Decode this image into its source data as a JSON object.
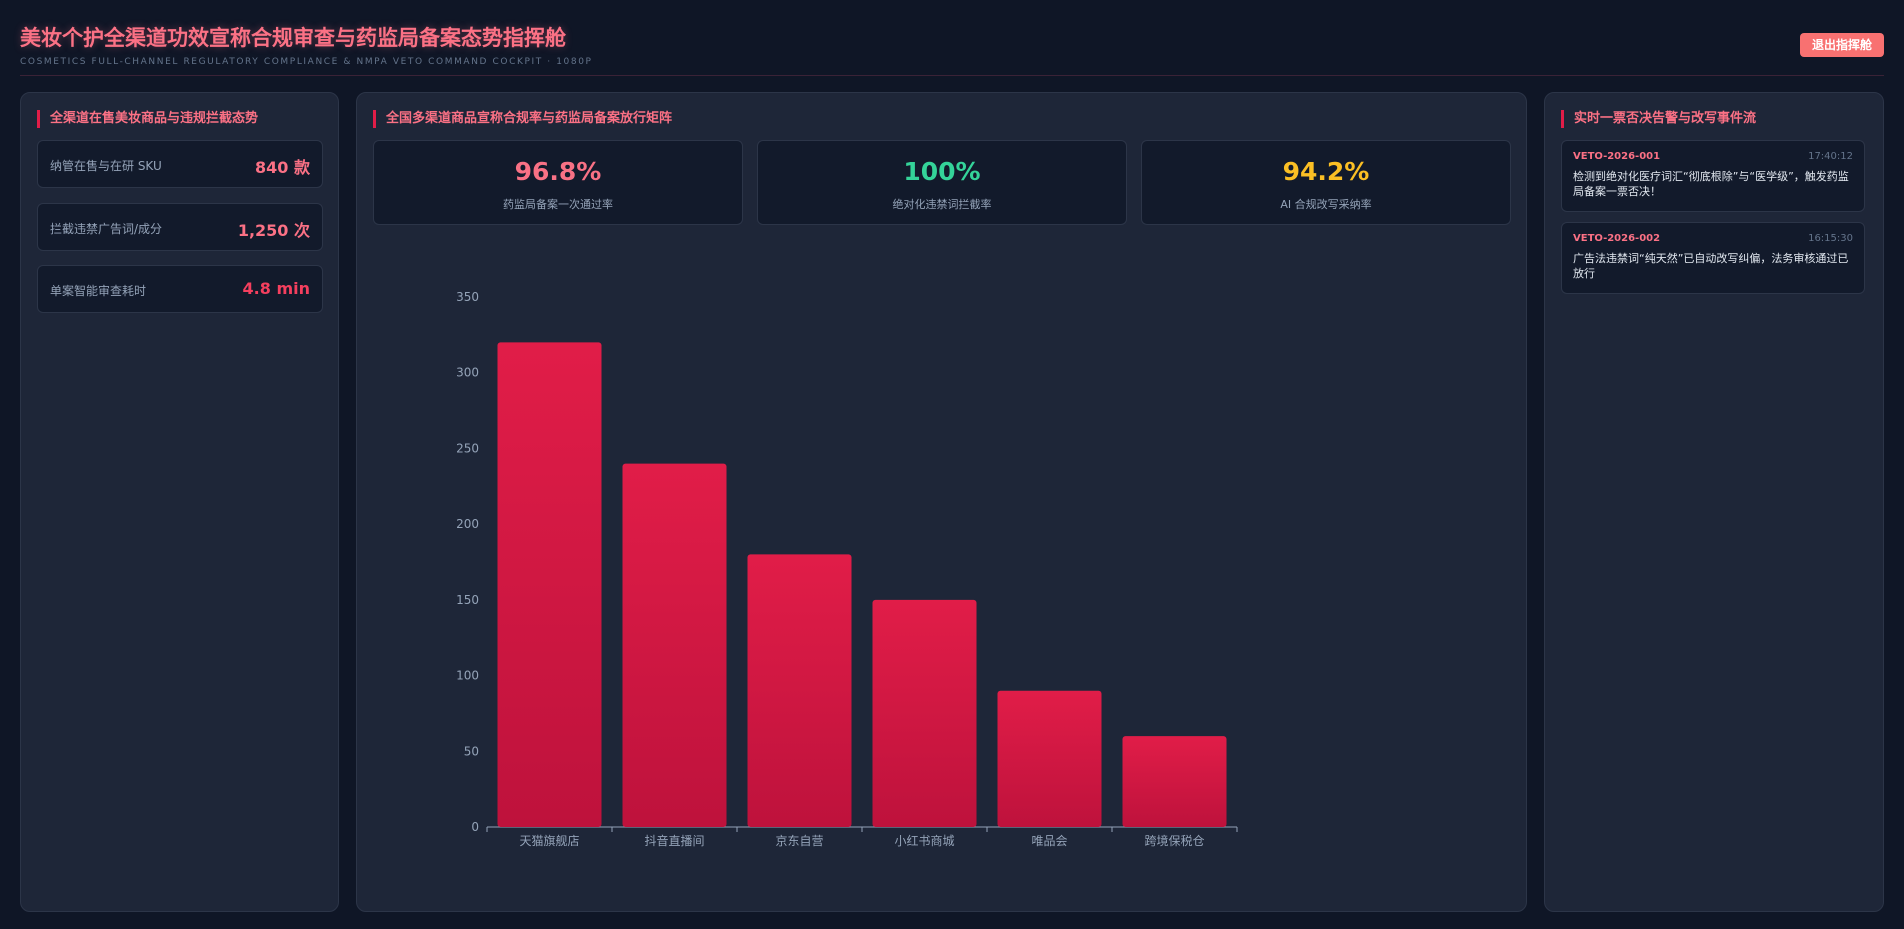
{
  "header": {
    "title": "美妆个护全渠道功效宣称合规审查与药监局备案态势指挥舱",
    "subtitle": "COSMETICS FULL-CHANNEL REGULATORY COMPLIANCE & NMPA VETO COMMAND COCKPIT · 1080P",
    "exit_label": "退出指挥舱"
  },
  "left_panel": {
    "title": "全渠道在售美妆商品与违规拦截态势",
    "stats": [
      {
        "label": "纳管在售与在研 SKU",
        "value": "840 款"
      },
      {
        "label": "拦截违禁广告词/成分",
        "value": "1,250 次"
      },
      {
        "label": "单案智能审查耗时",
        "value": "4.8 min"
      }
    ]
  },
  "center_panel": {
    "title": "全国多渠道商品宣称合规率与药监局备案放行矩阵",
    "kpis": [
      {
        "value": "96.8%",
        "label": "药监局备案一次通过率",
        "color": "#f87185"
      },
      {
        "value": "100%",
        "label": "绝对化违禁词拦截率",
        "color": "#34d399"
      },
      {
        "value": "94.2%",
        "label": "AI 合规改写采纳率",
        "color": "#fbbf24"
      }
    ]
  },
  "right_panel": {
    "title": "实时一票否决告警与改写事件流",
    "events": [
      {
        "id": "VETO-2026-001",
        "time": "17:40:12",
        "text": "检测到绝对化医疗词汇“彻底根除”与“医学级”，触发药监局备案一票否决！"
      },
      {
        "id": "VETO-2026-002",
        "time": "16:15:30",
        "text": "广告法违禁词“纯天然”已自动改写纠偏，法务审核通过已放行"
      }
    ]
  },
  "chart_data": {
    "type": "bar",
    "categories": [
      "天猫旗舰店",
      "抖音直播间",
      "京东自营",
      "小红书商城",
      "唯品会",
      "跨境保税仓"
    ],
    "values": [
      320,
      240,
      180,
      150,
      90,
      60
    ],
    "ylim": [
      0,
      350
    ],
    "yticks": [
      0,
      50,
      100,
      150,
      200,
      250,
      300,
      350
    ],
    "title": "",
    "xlabel": "",
    "ylabel": "",
    "bar_color": "#e11d48",
    "grid": false
  }
}
